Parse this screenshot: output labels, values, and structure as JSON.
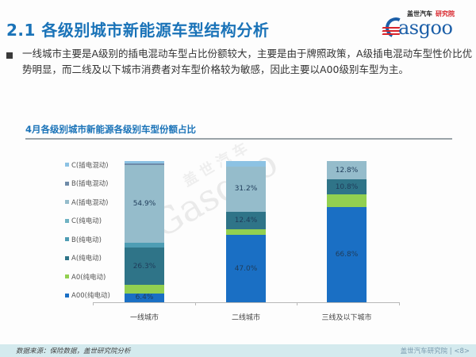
{
  "header": {
    "title": "2.1 各级别城市新能源车型结构分析",
    "logo": {
      "cn": "盖世汽车",
      "cn_red": "研究院",
      "en": "asgoo"
    }
  },
  "body": {
    "paragraph": "一线城市主要是A级别的插电混动车型占比份额较大，主要是由于牌照政策，A级插电混动车型性价比优势明显，而二线及以下城市消费者对车型价格较为敏感，因此主要以A00级别车型为主。"
  },
  "watermark": {
    "cn": "盖世汽车",
    "en": "Gasgoo"
  },
  "colors": {
    "A00_bev": "#1a6fc4",
    "A0_bev": "#92d050",
    "A_bev": "#2f7488",
    "B_bev": "#4e9db4",
    "C_bev": "#6fb3c3",
    "A_phev": "#95bccb",
    "B_phev": "#6f8ba8",
    "C_phev": "#8cc2e3"
  },
  "chart_data": {
    "type": "bar",
    "stacked": true,
    "percent": true,
    "title": "4月各级别城市新能源各级别车型份额占比",
    "xlabel": "",
    "ylabel": "",
    "ylim": [
      0,
      100
    ],
    "grid": false,
    "legend_position": "left",
    "categories": [
      "一线城市",
      "二线城市",
      "三线及以下城市"
    ],
    "series": [
      {
        "name": "A00(纯电动)",
        "key": "A00_bev",
        "values": [
          6.4,
          47.0,
          66.8
        ],
        "labels": [
          "6.4%",
          "47.0%",
          "66.8%"
        ]
      },
      {
        "name": "A0(纯电动)",
        "key": "A0_bev",
        "values": [
          6.0,
          4.0,
          8.5
        ],
        "labels": [
          "",
          "",
          ""
        ]
      },
      {
        "name": "A(纯电动)",
        "key": "A_bev",
        "values": [
          26.3,
          12.4,
          10.8
        ],
        "labels": [
          "26.3%",
          "12.4%",
          "10.8%"
        ]
      },
      {
        "name": "B(纯电动)",
        "key": "B_bev",
        "values": [
          3.9,
          0.0,
          0.0
        ],
        "labels": [
          "",
          "",
          ""
        ]
      },
      {
        "name": "C(纯电动)",
        "key": "C_bev",
        "values": [
          0.0,
          0.0,
          0.0
        ],
        "labels": [
          "",
          "",
          ""
        ]
      },
      {
        "name": "A(插电混动)",
        "key": "A_phev",
        "values": [
          54.9,
          31.2,
          12.8
        ],
        "labels": [
          "54.9%",
          "31.2%",
          "12.8%"
        ]
      },
      {
        "name": "B(插电混动)",
        "key": "B_phev",
        "values": [
          1.5,
          0.0,
          0.0
        ],
        "labels": [
          "",
          "",
          ""
        ]
      },
      {
        "name": "C(插电混动)",
        "key": "C_phev",
        "values": [
          1.5,
          4.0,
          0.0
        ],
        "labels": [
          "",
          "",
          ""
        ]
      }
    ],
    "legend": [
      "C(插电混动)",
      "B(插电混动)",
      "A(插电混动)",
      "C(纯电动)",
      "B(纯电动)",
      "A(纯电动)",
      "A0(纯电动)",
      "A00(纯电动)"
    ]
  },
  "footer": {
    "source": "数据来源：保险数据，盖世研究院分析",
    "page": "盖世汽车研究院 | <8>"
  }
}
